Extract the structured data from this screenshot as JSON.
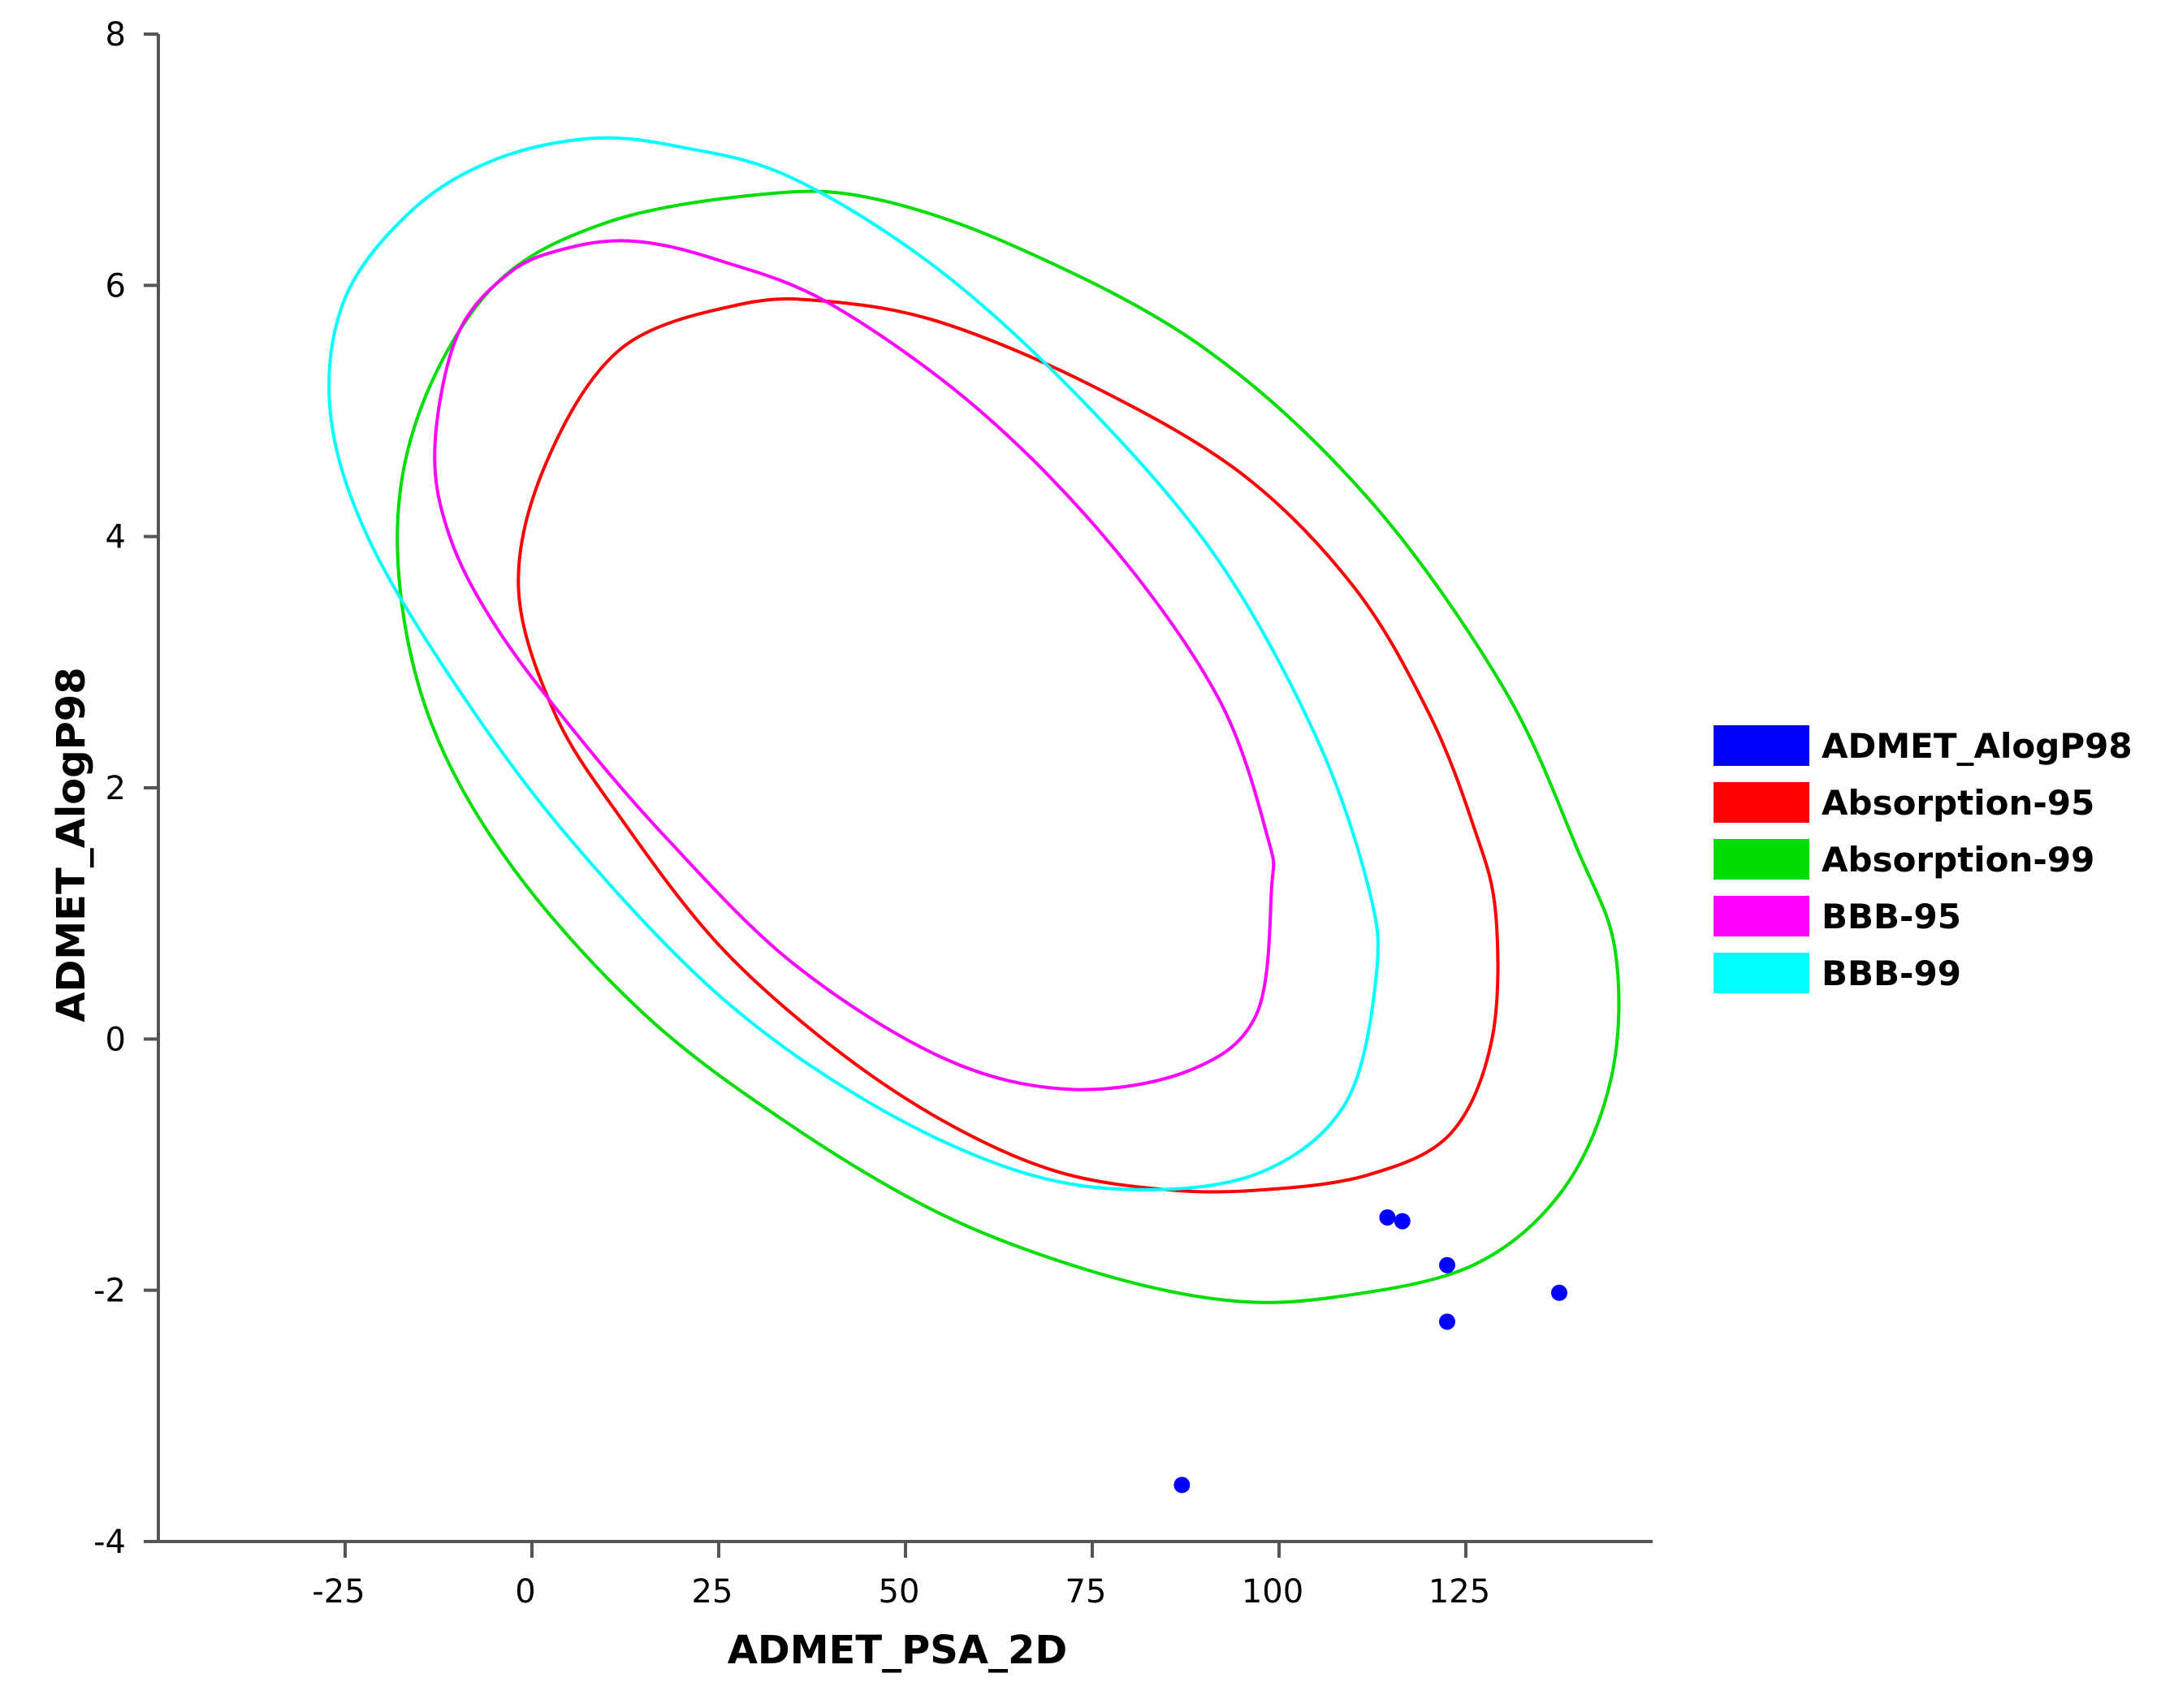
{
  "chart_data": {
    "type": "scatter",
    "title": "",
    "xlabel": "ADMET_PSA_2D",
    "ylabel": "ADMET_AlogP98",
    "xlim": [
      -50,
      150
    ],
    "ylim": [
      -4,
      8
    ],
    "x_ticks": [
      "-25",
      "0",
      "25",
      "50",
      "75",
      "100",
      "125"
    ],
    "y_ticks": [
      "-4",
      "-2",
      "0",
      "2",
      "4",
      "6",
      "8"
    ],
    "grid": false,
    "legend_position": "right",
    "series": [
      {
        "name": "ADMET_AlogP98",
        "kind": "points",
        "color": "#0000ff",
        "points": [
          [
            114.5,
            -1.42
          ],
          [
            116.5,
            -1.45
          ],
          [
            122.5,
            -1.8
          ],
          [
            122.5,
            -2.25
          ],
          [
            137.5,
            -2.02
          ],
          [
            87,
            -3.55
          ]
        ]
      },
      {
        "name": "Absorption-95",
        "kind": "ellipse",
        "color": "#ff0000",
        "outline": [
          [
            -1.8,
            3.6
          ],
          [
            2,
            4.6
          ],
          [
            12,
            5.5
          ],
          [
            28,
            5.85
          ],
          [
            40,
            5.87
          ],
          [
            55,
            5.7
          ],
          [
            75,
            5.2
          ],
          [
            95,
            4.5
          ],
          [
            110,
            3.6
          ],
          [
            120,
            2.6
          ],
          [
            126,
            1.7
          ],
          [
            129,
            1.0
          ],
          [
            128.5,
            0.0
          ],
          [
            123,
            -0.75
          ],
          [
            112,
            -1.08
          ],
          [
            98,
            -1.2
          ],
          [
            85,
            -1.2
          ],
          [
            70,
            -1.05
          ],
          [
            55,
            -0.65
          ],
          [
            40,
            -0.05
          ],
          [
            25,
            0.75
          ],
          [
            12,
            1.75
          ],
          [
            3,
            2.6
          ]
        ]
      },
      {
        "name": "Absorption-99",
        "kind": "ellipse",
        "color": "#00dd00",
        "outline": [
          [
            -18,
            3.9
          ],
          [
            -15,
            5.0
          ],
          [
            -5,
            6.0
          ],
          [
            10,
            6.5
          ],
          [
            30,
            6.72
          ],
          [
            45,
            6.7
          ],
          [
            65,
            6.3
          ],
          [
            90,
            5.5
          ],
          [
            112,
            4.3
          ],
          [
            130,
            2.8
          ],
          [
            140,
            1.5
          ],
          [
            145,
            0.7
          ],
          [
            144.5,
            -0.3
          ],
          [
            138,
            -1.2
          ],
          [
            126,
            -1.8
          ],
          [
            108,
            -2.05
          ],
          [
            93,
            -2.08
          ],
          [
            75,
            -1.85
          ],
          [
            55,
            -1.4
          ],
          [
            35,
            -0.7
          ],
          [
            15,
            0.2
          ],
          [
            -3,
            1.4
          ],
          [
            -14,
            2.6
          ]
        ]
      },
      {
        "name": "BBB-95",
        "kind": "ellipse",
        "color": "#ff00ff",
        "outline": [
          [
            -13,
            4.7
          ],
          [
            -10,
            5.6
          ],
          [
            -3,
            6.1
          ],
          [
            5,
            6.3
          ],
          [
            14,
            6.35
          ],
          [
            25,
            6.2
          ],
          [
            40,
            5.85
          ],
          [
            60,
            5.0
          ],
          [
            78,
            3.9
          ],
          [
            92,
            2.7
          ],
          [
            98.5,
            1.6
          ],
          [
            99,
            1.2
          ],
          [
            97,
            0.2
          ],
          [
            88,
            -0.25
          ],
          [
            72,
            -0.4
          ],
          [
            55,
            -0.15
          ],
          [
            35,
            0.6
          ],
          [
            18,
            1.6
          ],
          [
            5,
            2.5
          ],
          [
            -5,
            3.3
          ],
          [
            -11,
            4.0
          ]
        ]
      },
      {
        "name": "BBB-99",
        "kind": "ellipse",
        "color": "#00ffff",
        "outline": [
          [
            -27,
            5.0
          ],
          [
            -25,
            5.9
          ],
          [
            -16,
            6.6
          ],
          [
            -5,
            7.0
          ],
          [
            8,
            7.17
          ],
          [
            20,
            7.1
          ],
          [
            35,
            6.85
          ],
          [
            55,
            6.1
          ],
          [
            75,
            5.0
          ],
          [
            92,
            3.8
          ],
          [
            105,
            2.4
          ],
          [
            112,
            1.2
          ],
          [
            113,
            0.5
          ],
          [
            109,
            -0.5
          ],
          [
            98,
            -1.05
          ],
          [
            82,
            -1.2
          ],
          [
            65,
            -1.05
          ],
          [
            45,
            -0.5
          ],
          [
            25,
            0.35
          ],
          [
            5,
            1.6
          ],
          [
            -10,
            2.8
          ],
          [
            -22,
            4.0
          ]
        ]
      }
    ]
  }
}
